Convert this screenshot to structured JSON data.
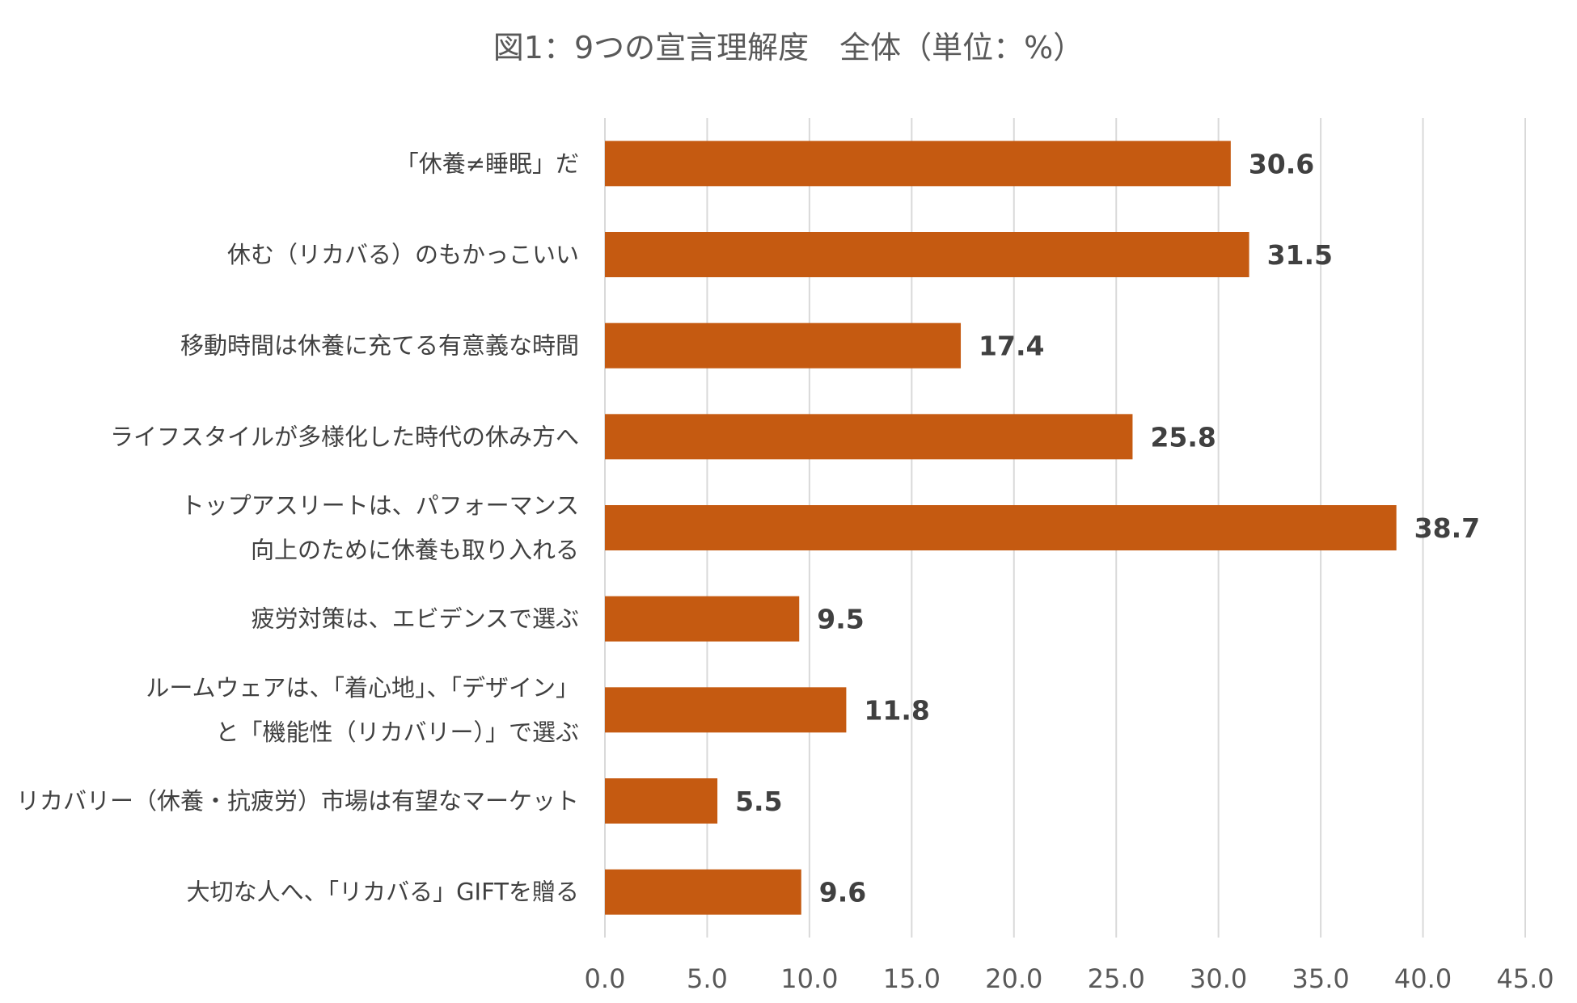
{
  "chart_data": {
    "type": "bar",
    "orientation": "horizontal",
    "title": "図1：9つの宣言理解度　全体（単位：%）",
    "xlabel": "",
    "ylabel": "",
    "xlim": [
      0,
      45
    ],
    "ticks": [
      "0.0",
      "5.0",
      "10.0",
      "15.0",
      "20.0",
      "25.0",
      "30.0",
      "35.0",
      "40.0",
      "45.0"
    ],
    "tick_values": [
      0,
      5,
      10,
      15,
      20,
      25,
      30,
      35,
      40,
      45
    ],
    "grid": true,
    "legend": "none",
    "bar_color": "#c55a11",
    "categories": [
      [
        "「休養≠睡眠」だ"
      ],
      [
        "休む（リカバる）のもかっこいい"
      ],
      [
        "移動時間は休養に充てる有意義な時間"
      ],
      [
        "ライフスタイルが多様化した時代の休み方へ"
      ],
      [
        "トップアスリートは、パフォーマンス",
        "向上のために休養も取り入れる"
      ],
      [
        "疲労対策は、エビデンスで選ぶ"
      ],
      [
        "ルームウェアは、「着心地」、「デザイン」",
        "と「機能性（リカバリー）」で選ぶ"
      ],
      [
        "リカバリー（休養・抗疲労）市場は有望なマーケット"
      ],
      [
        "大切な人へ、「リカバる」GIFTを贈る"
      ]
    ],
    "values": [
      30.6,
      31.5,
      17.4,
      25.8,
      38.7,
      9.5,
      11.8,
      5.5,
      9.6
    ],
    "value_labels": [
      "30.6",
      "31.5",
      "17.4",
      "25.8",
      "38.7",
      "9.5",
      "11.8",
      "5.5",
      "9.6"
    ]
  }
}
